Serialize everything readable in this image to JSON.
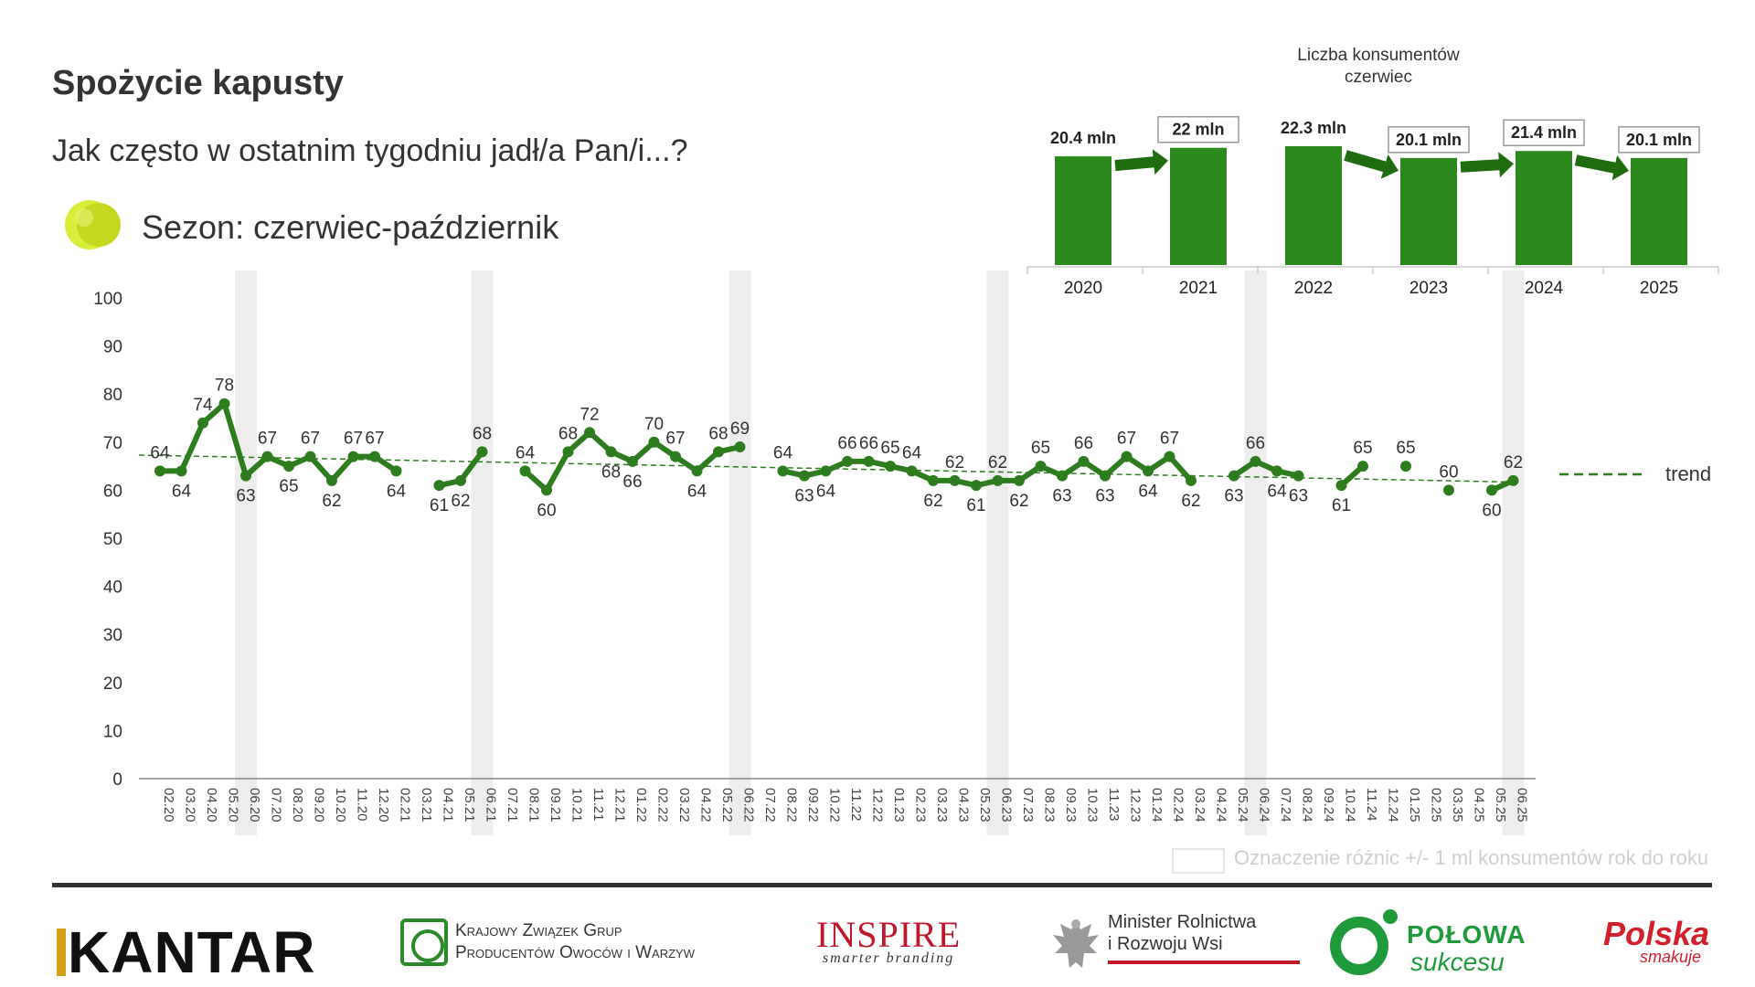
{
  "header": {
    "title": "Spożycie kapusty",
    "question": "Jak często w ostatnim tygodniu jadł/a Pan/i...?",
    "season": "Sezon: czerwiec-październik"
  },
  "colors": {
    "line": "#2d7d1f",
    "bar": "#2b8a1b",
    "arrow": "#1f6b10",
    "trend": "#2d7d1f",
    "season_band": "#ededed",
    "axis": "#888888"
  },
  "icon": "lime-circle-icon",
  "chart_data": [
    {
      "type": "line",
      "ylim": [
        0,
        100
      ],
      "yticks": [
        0,
        10,
        20,
        30,
        40,
        50,
        60,
        70,
        80,
        90,
        100
      ],
      "categories": [
        "02.20",
        "03.20",
        "04.20",
        "05.20",
        "06.20",
        "07.20",
        "08.20",
        "09.20",
        "10.20",
        "11.20",
        "12.20",
        "02.21",
        "03.21",
        "04.21",
        "05.21",
        "06.21",
        "07.21",
        "08.21",
        "09.21",
        "10.21",
        "11.21",
        "12.21",
        "01.22",
        "02.22",
        "03.22",
        "04.22",
        "05.22",
        "06.22",
        "07.22",
        "08.22",
        "09.22",
        "10.22",
        "11.22",
        "12.22",
        "01.23",
        "02.23",
        "03.23",
        "04.23",
        "05.23",
        "06.23",
        "07.23",
        "08.23",
        "09.23",
        "10.23",
        "11.23",
        "12.23",
        "01.24",
        "02.24",
        "03.24",
        "04.24",
        "05.24",
        "06.24",
        "07.24",
        "08.24",
        "09.24",
        "10.24",
        "11.24",
        "12.24",
        "01.25",
        "02.25",
        "03.35",
        "04.25",
        "05.25",
        "06.25"
      ],
      "series": [
        {
          "values": [
            64,
            64,
            74,
            78,
            63,
            67,
            65,
            67,
            62,
            67,
            67,
            64,
            null,
            61,
            62,
            68,
            null,
            64,
            60,
            68,
            72,
            68,
            66,
            70,
            67,
            64,
            68,
            69,
            null,
            64,
            63,
            64,
            66,
            66,
            65,
            64,
            62,
            62,
            61,
            62,
            62,
            65,
            63,
            66,
            63,
            67,
            64,
            67,
            62,
            null,
            63,
            66,
            64,
            63,
            null,
            61,
            65,
            null,
            65,
            null,
            60,
            null,
            60,
            62
          ],
          "labels": [
            "64",
            "64",
            "74",
            "78",
            "63",
            "67",
            "65",
            "67",
            "62",
            "67",
            "67",
            "64",
            null,
            "61",
            "62",
            "68",
            null,
            "64",
            "60",
            "68",
            "72",
            "68",
            "66",
            "70",
            "67",
            "64",
            "68",
            "69",
            null,
            "64",
            "63",
            "64",
            "66",
            "66",
            "65",
            "64",
            "62",
            "62",
            "61",
            "62",
            "62",
            "65",
            "63",
            "66",
            "63",
            "67",
            "64",
            "67",
            "62",
            null,
            "63",
            "66",
            "64",
            "63",
            null,
            "61",
            "65",
            null,
            "65",
            null,
            "60",
            null,
            "60",
            "62"
          ]
        }
      ],
      "connected_runs": [
        [
          0,
          11
        ],
        [
          13,
          16
        ],
        [
          17,
          28
        ],
        [
          29,
          49
        ],
        [
          50,
          54
        ],
        [
          55,
          57
        ],
        [
          62,
          64
        ]
      ],
      "highlighted_categories": [
        "06.20",
        "06.21",
        "06.22",
        "06.23",
        "06.24",
        "06.25"
      ],
      "trend": {
        "label": "trend",
        "start": 67.3,
        "end": 61.7
      }
    },
    {
      "type": "bar",
      "title": "Liczba konsumentów",
      "subtitle": "czerwiec",
      "categories": [
        "2020",
        "2021",
        "2022",
        "2023",
        "2024",
        "2025"
      ],
      "values": [
        20.4,
        22,
        22.3,
        20.1,
        21.4,
        20.1
      ],
      "value_labels": [
        "20.4 mln",
        "22 mln",
        "22.3 mln",
        "20.1 mln",
        "21.4 mln",
        "20.1 mln"
      ],
      "boxed_labels": [
        false,
        true,
        false,
        true,
        true,
        true
      ],
      "arrows": [
        [
          0,
          1
        ],
        [
          2,
          3
        ],
        [
          3,
          4
        ],
        [
          4,
          5
        ]
      ]
    }
  ],
  "legend_note": "Oznaczenie różnic +/- 1 ml konsumentów rok do roku",
  "logos": {
    "kantar": "KANTAR",
    "kzg_line1": "Krajowy Związek Grup",
    "kzg_line2": "Producentów Owoców i Warzyw",
    "inspire": "INSPIRE",
    "inspire_sub": "smarter branding",
    "minister_line1": "Minister Rolnictwa",
    "minister_line2": "i Rozwoju Wsi",
    "polowa_1": "POŁOWA",
    "polowa_2": "sukcesu",
    "polska_1": "Polska",
    "polska_2": "smakuje"
  }
}
